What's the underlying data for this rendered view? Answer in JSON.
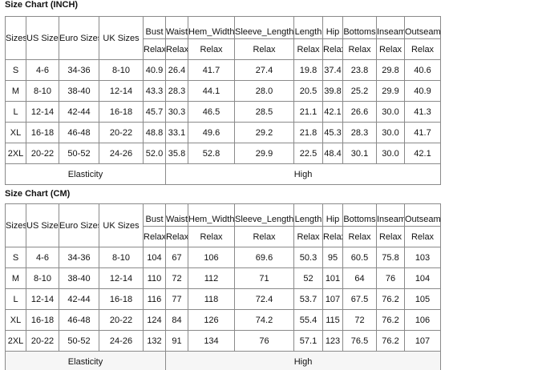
{
  "tables": [
    {
      "title": "Size Chart (INCH)",
      "fixed_headers": [
        "Sizes",
        "US Sizes",
        "Euro Sizes",
        "UK Sizes"
      ],
      "measure_headers": [
        "Bust",
        "Waist",
        "Hem_Width",
        "Sleeve_Length",
        "Length",
        "Hip",
        "Bottoms",
        "Inseam",
        "Outseam"
      ],
      "sub_header": "Relax",
      "rows": [
        [
          "S",
          "4-6",
          "34-36",
          "8-10",
          "40.9",
          "26.4",
          "41.7",
          "27.4",
          "19.8",
          "37.4",
          "23.8",
          "29.8",
          "40.6"
        ],
        [
          "M",
          "8-10",
          "38-40",
          "12-14",
          "43.3",
          "28.3",
          "44.1",
          "28.0",
          "20.5",
          "39.8",
          "25.2",
          "29.9",
          "40.9"
        ],
        [
          "L",
          "12-14",
          "42-44",
          "16-18",
          "45.7",
          "30.3",
          "46.5",
          "28.5",
          "21.1",
          "42.1",
          "26.6",
          "30.0",
          "41.3"
        ],
        [
          "XL",
          "16-18",
          "46-48",
          "20-22",
          "48.8",
          "33.1",
          "49.6",
          "29.2",
          "21.8",
          "45.3",
          "28.3",
          "30.0",
          "41.7"
        ],
        [
          "2XL",
          "20-22",
          "50-52",
          "24-26",
          "52.0",
          "35.8",
          "52.8",
          "29.9",
          "22.5",
          "48.4",
          "30.1",
          "30.0",
          "42.1"
        ]
      ],
      "elasticity_label": "Elasticity",
      "elasticity_value": "High"
    },
    {
      "title": "Size Chart (CM)",
      "fixed_headers": [
        "Sizes",
        "US Sizes",
        "Euro Sizes",
        "UK Sizes"
      ],
      "measure_headers": [
        "Bust",
        "Waist",
        "Hem_Width",
        "Sleeve_Length",
        "Length",
        "Hip",
        "Bottoms",
        "Inseam",
        "Outseam"
      ],
      "sub_header": "Relax",
      "rows": [
        [
          "S",
          "4-6",
          "34-36",
          "8-10",
          "104",
          "67",
          "106",
          "69.6",
          "50.3",
          "95",
          "60.5",
          "75.8",
          "103"
        ],
        [
          "M",
          "8-10",
          "38-40",
          "12-14",
          "110",
          "72",
          "112",
          "71",
          "52",
          "101",
          "64",
          "76",
          "104"
        ],
        [
          "L",
          "12-14",
          "42-44",
          "16-18",
          "116",
          "77",
          "118",
          "72.4",
          "53.7",
          "107",
          "67.5",
          "76.2",
          "105"
        ],
        [
          "XL",
          "16-18",
          "46-48",
          "20-22",
          "124",
          "84",
          "126",
          "74.2",
          "55.4",
          "115",
          "72",
          "76.2",
          "106"
        ],
        [
          "2XL",
          "20-22",
          "50-52",
          "24-26",
          "132",
          "91",
          "134",
          "76",
          "57.1",
          "123",
          "76.5",
          "76.2",
          "107"
        ]
      ],
      "elasticity_label": "Elasticity",
      "elasticity_value": "High"
    }
  ]
}
